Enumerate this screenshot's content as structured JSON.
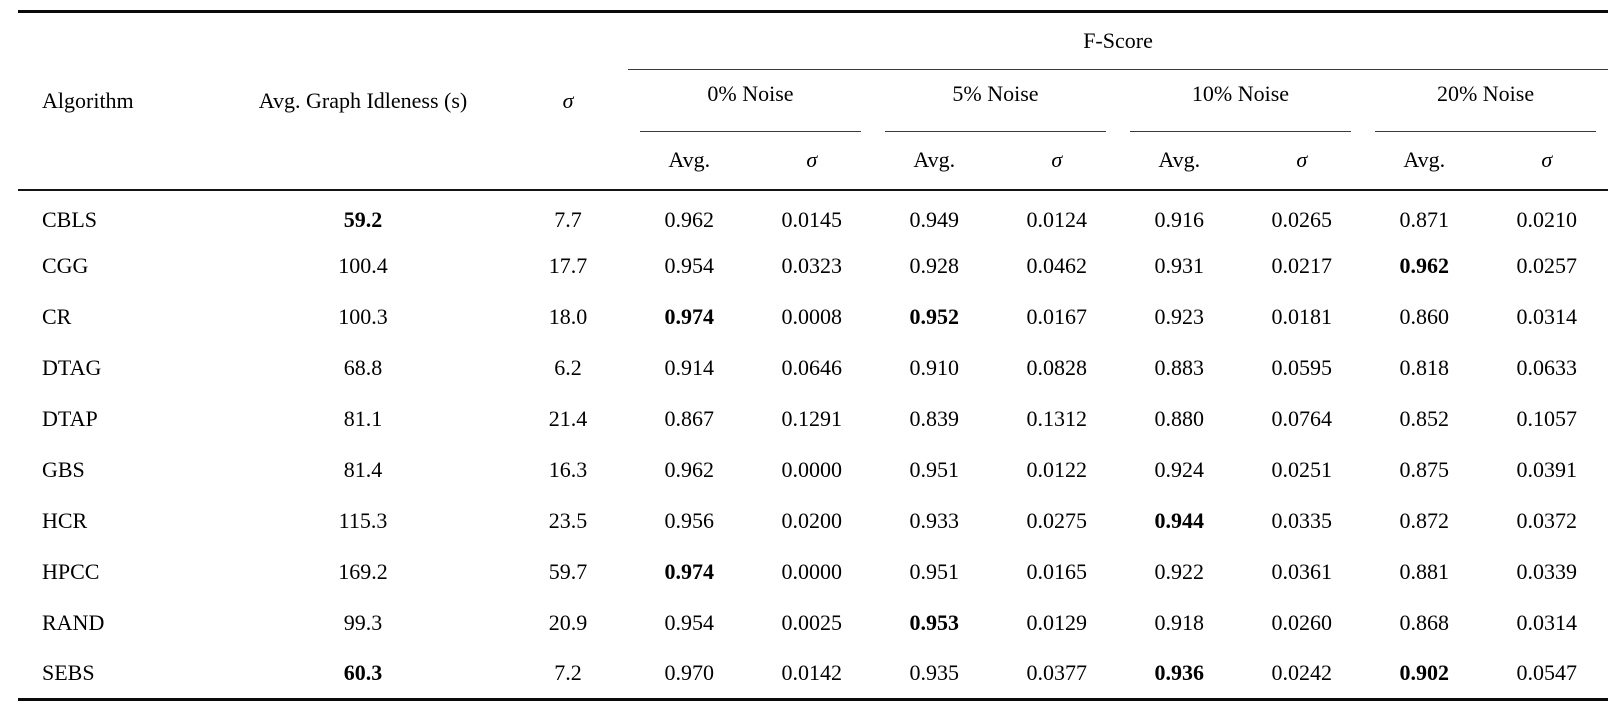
{
  "table": {
    "headers": {
      "algorithm": "Algorithm",
      "idleness": "Avg. Graph Idleness (s)",
      "sigma": "σ",
      "fscore": "F-Score",
      "noise_groups": [
        "0% Noise",
        "5% Noise",
        "10% Noise",
        "20% Noise"
      ],
      "sub_avg": "Avg.",
      "sub_sigma": "σ"
    },
    "rows": [
      {
        "algorithm": "CBLS",
        "values": [
          "59.2",
          "7.7",
          "0.962",
          "0.0145",
          "0.949",
          "0.0124",
          "0.916",
          "0.0265",
          "0.871",
          "0.0210"
        ],
        "bold_indices": [
          0
        ]
      },
      {
        "algorithm": "CGG",
        "values": [
          "100.4",
          "17.7",
          "0.954",
          "0.0323",
          "0.928",
          "0.0462",
          "0.931",
          "0.0217",
          "0.962",
          "0.0257"
        ],
        "bold_indices": [
          8
        ]
      },
      {
        "algorithm": "CR",
        "values": [
          "100.3",
          "18.0",
          "0.974",
          "0.0008",
          "0.952",
          "0.0167",
          "0.923",
          "0.0181",
          "0.860",
          "0.0314"
        ],
        "bold_indices": [
          2,
          4
        ]
      },
      {
        "algorithm": "DTAG",
        "values": [
          "68.8",
          "6.2",
          "0.914",
          "0.0646",
          "0.910",
          "0.0828",
          "0.883",
          "0.0595",
          "0.818",
          "0.0633"
        ],
        "bold_indices": []
      },
      {
        "algorithm": "DTAP",
        "values": [
          "81.1",
          "21.4",
          "0.867",
          "0.1291",
          "0.839",
          "0.1312",
          "0.880",
          "0.0764",
          "0.852",
          "0.1057"
        ],
        "bold_indices": []
      },
      {
        "algorithm": "GBS",
        "values": [
          "81.4",
          "16.3",
          "0.962",
          "0.0000",
          "0.951",
          "0.0122",
          "0.924",
          "0.0251",
          "0.875",
          "0.0391"
        ],
        "bold_indices": []
      },
      {
        "algorithm": "HCR",
        "values": [
          "115.3",
          "23.5",
          "0.956",
          "0.0200",
          "0.933",
          "0.0275",
          "0.944",
          "0.0335",
          "0.872",
          "0.0372"
        ],
        "bold_indices": [
          6
        ]
      },
      {
        "algorithm": "HPCC",
        "values": [
          "169.2",
          "59.7",
          "0.974",
          "0.0000",
          "0.951",
          "0.0165",
          "0.922",
          "0.0361",
          "0.881",
          "0.0339"
        ],
        "bold_indices": [
          2
        ]
      },
      {
        "algorithm": "RAND",
        "values": [
          "99.3",
          "20.9",
          "0.954",
          "0.0025",
          "0.953",
          "0.0129",
          "0.918",
          "0.0260",
          "0.868",
          "0.0314"
        ],
        "bold_indices": [
          4
        ]
      },
      {
        "algorithm": "SEBS",
        "values": [
          "60.3",
          "7.2",
          "0.970",
          "0.0142",
          "0.935",
          "0.0377",
          "0.936",
          "0.0242",
          "0.902",
          "0.0547"
        ],
        "bold_indices": [
          0,
          6,
          8
        ]
      }
    ]
  }
}
